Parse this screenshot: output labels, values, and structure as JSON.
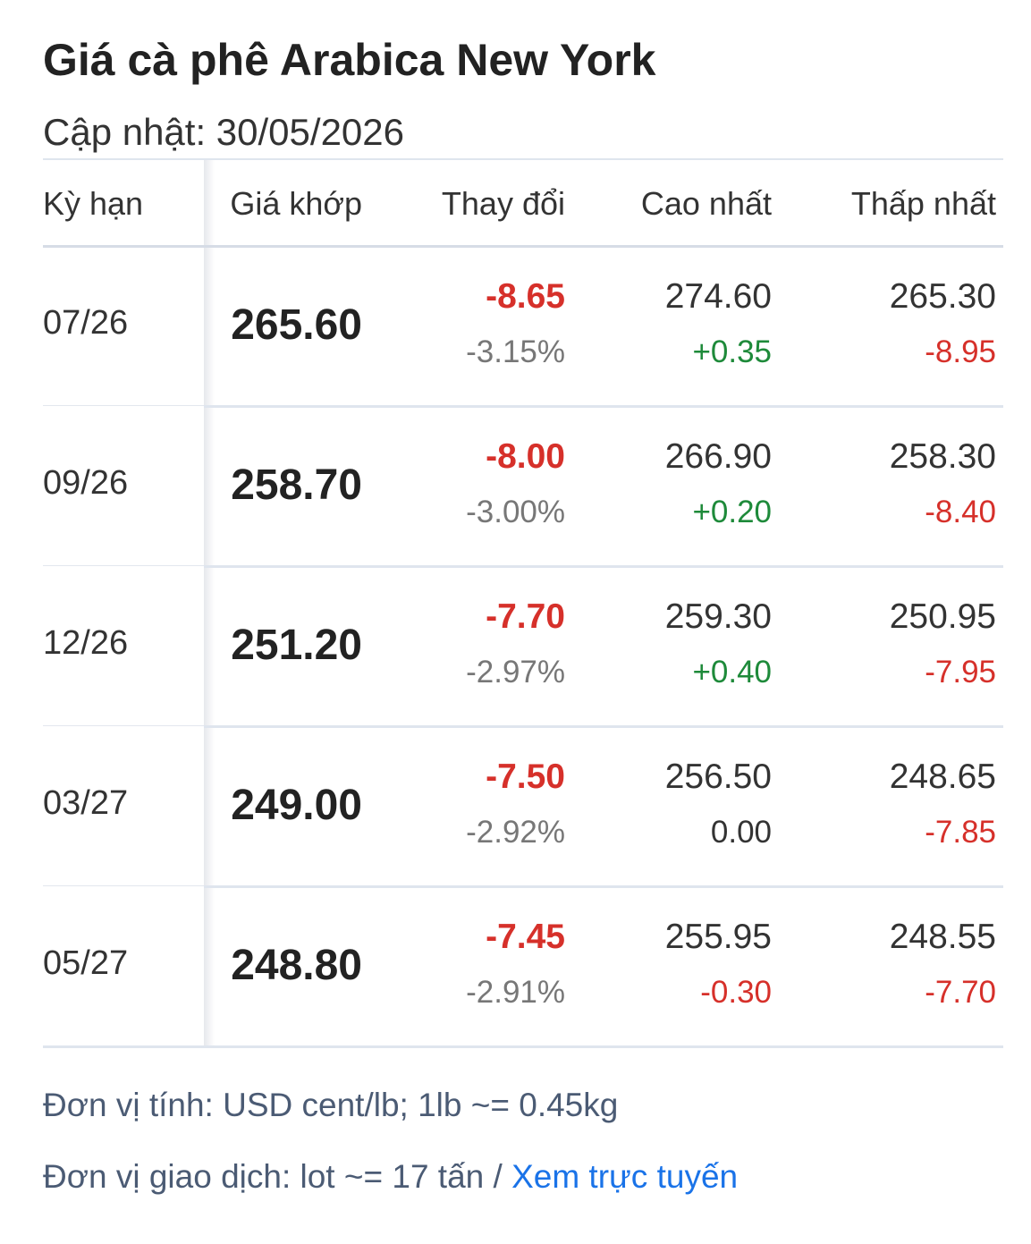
{
  "title": "Giá cà phê Arabica New York",
  "subtitle": "Cập nhật: 30/05/2026",
  "table": {
    "header": [
      "Kỳ hạn",
      "Giá khớp",
      "Thay đổi",
      "Cao nhất",
      "Thấp nhất"
    ],
    "rows": [
      {
        "term": "07/26",
        "price": "265.60",
        "change": "-8.65",
        "change_pct": "-3.15%",
        "high": "274.60",
        "high_change": "+0.35",
        "low": "265.30",
        "low_change": "-8.95"
      },
      {
        "term": "09/26",
        "price": "258.70",
        "change": "-8.00",
        "change_pct": "-3.00%",
        "high": "266.90",
        "high_change": "+0.20",
        "low": "258.30",
        "low_change": "-8.40"
      },
      {
        "term": "12/26",
        "price": "251.20",
        "change": "-7.70",
        "change_pct": "-2.97%",
        "high": "259.30",
        "high_change": "+0.40",
        "low": "250.95",
        "low_change": "-7.95"
      },
      {
        "term": "03/27",
        "price": "249.00",
        "change": "-7.50",
        "change_pct": "-2.92%",
        "high": "256.50",
        "high_change": "0.00",
        "low": "248.65",
        "low_change": "-7.85"
      },
      {
        "term": "05/27",
        "price": "248.80",
        "change": "-7.45",
        "change_pct": "-2.91%",
        "high": "255.95",
        "high_change": "-0.30",
        "low": "248.55",
        "low_change": "-7.70"
      }
    ]
  },
  "footer": {
    "unit": "Đơn vị tính: USD cent/lb; 1lb ~= 0.45kg",
    "trade": "Đơn vị giao dịch: lot ~= 17 tấn /",
    "link": "Xem trực tuyến"
  }
}
